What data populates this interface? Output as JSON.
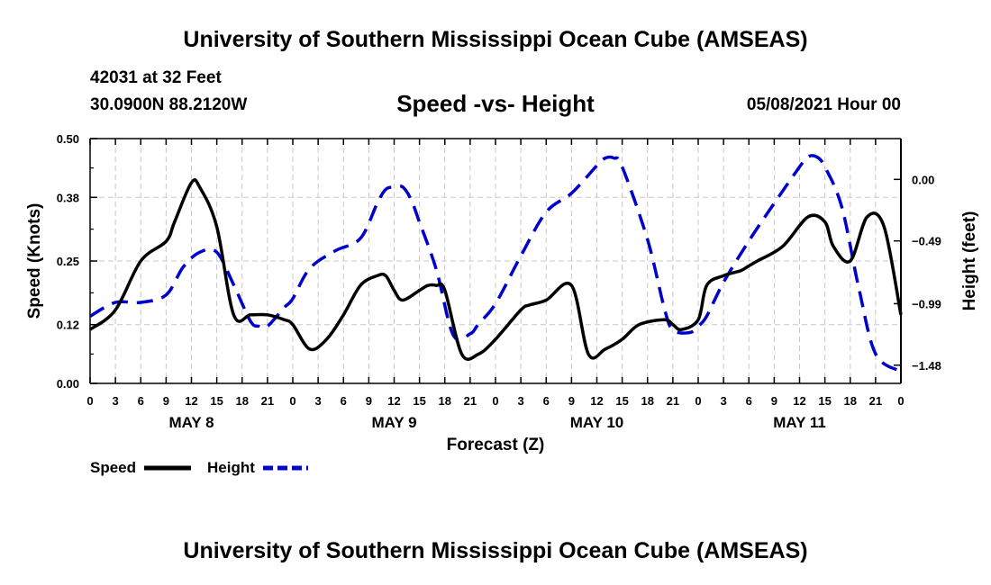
{
  "header": {
    "title": "University of Southern Mississippi Ocean Cube (AMSEAS)",
    "station": "42031 at 32 Feet",
    "coordinates": "30.0900N  88.2120W",
    "date": "05/08/2021 Hour 00"
  },
  "footer": {
    "title": "University of Southern Mississippi Ocean Cube (AMSEAS)"
  },
  "chart_data": {
    "type": "line",
    "title": "Speed -vs- Height",
    "xlabel": "Forecast (Z)",
    "ylabel": "Speed (Knots)",
    "y2label": "Height (feet)",
    "xlim": [
      0,
      96
    ],
    "ylim": [
      0,
      0.5
    ],
    "y2lim": [
      -1.625,
      0.325
    ],
    "grid": true,
    "x_ticks": [
      0,
      3,
      6,
      9,
      12,
      15,
      18,
      21,
      24,
      27,
      30,
      33,
      36,
      39,
      42,
      45,
      48,
      51,
      54,
      57,
      60,
      63,
      66,
      69,
      72,
      75,
      78,
      81,
      84,
      87,
      90,
      93,
      96
    ],
    "x_tick_labels": [
      "0",
      "3",
      "6",
      "9",
      "12",
      "15",
      "18",
      "21",
      "0",
      "3",
      "6",
      "9",
      "12",
      "15",
      "18",
      "21",
      "0",
      "3",
      "6",
      "9",
      "12",
      "15",
      "18",
      "21",
      "0",
      "3",
      "6",
      "9",
      "12",
      "15",
      "18",
      "21",
      "0"
    ],
    "y_ticks": [
      0.0,
      0.12,
      0.25,
      0.38,
      0.5
    ],
    "y_tick_labels": [
      "0.00",
      "0.12",
      "0.25",
      "0.38",
      "0.50"
    ],
    "y2_ticks": [
      0.0,
      -0.49,
      -0.99,
      -1.48
    ],
    "y2_tick_labels": [
      "0.00",
      "−0.49",
      "−0.99",
      "−1.48"
    ],
    "day_labels": [
      {
        "label": "MAY 8",
        "x": 12
      },
      {
        "label": "MAY 9",
        "x": 36
      },
      {
        "label": "MAY 10",
        "x": 60
      },
      {
        "label": "MAY 11",
        "x": 84
      }
    ],
    "series": [
      {
        "name": "Speed",
        "axis": "left",
        "color": "#000000",
        "dash": "solid",
        "x": [
          0,
          3,
          6,
          9,
          10,
          12,
          13,
          15,
          17,
          19,
          21,
          23,
          24,
          26,
          28,
          30,
          32,
          34,
          35,
          36,
          37,
          39,
          40,
          41,
          42,
          44,
          46,
          48,
          51,
          52,
          54,
          57,
          59,
          61,
          63,
          65,
          68,
          69,
          70,
          72,
          73,
          75,
          77,
          78,
          79,
          82,
          85,
          87,
          88,
          90,
          92,
          94,
          96
        ],
        "y": [
          0.11,
          0.15,
          0.25,
          0.29,
          0.33,
          0.41,
          0.4,
          0.32,
          0.14,
          0.14,
          0.14,
          0.13,
          0.12,
          0.07,
          0.09,
          0.14,
          0.2,
          0.22,
          0.22,
          0.19,
          0.17,
          0.19,
          0.2,
          0.2,
          0.19,
          0.06,
          0.06,
          0.09,
          0.15,
          0.16,
          0.17,
          0.2,
          0.06,
          0.07,
          0.09,
          0.12,
          0.13,
          0.12,
          0.11,
          0.13,
          0.2,
          0.22,
          0.23,
          0.24,
          0.25,
          0.28,
          0.34,
          0.33,
          0.28,
          0.25,
          0.34,
          0.32,
          0.14
        ]
      },
      {
        "name": "Height",
        "axis": "right",
        "color": "#0000cc",
        "dash": "dashed",
        "x": [
          0,
          3,
          6,
          9,
          11,
          13,
          15,
          17,
          19,
          20,
          21,
          23,
          24,
          26,
          29,
          32,
          34,
          35,
          36,
          37,
          38,
          39,
          41,
          43,
          45,
          46,
          48,
          51,
          54,
          57,
          60,
          61,
          62,
          63,
          66,
          68,
          69,
          71,
          72,
          73,
          75,
          78,
          81,
          84,
          85,
          86,
          87,
          89,
          91,
          93,
          96
        ],
        "y": [
          -1.09,
          -0.98,
          -0.98,
          -0.92,
          -0.7,
          -0.58,
          -0.58,
          -0.84,
          -1.13,
          -1.17,
          -1.17,
          -1.02,
          -0.95,
          -0.71,
          -0.57,
          -0.47,
          -0.19,
          -0.08,
          -0.06,
          -0.06,
          -0.16,
          -0.34,
          -0.72,
          -1.24,
          -1.23,
          -1.15,
          -0.99,
          -0.61,
          -0.26,
          -0.11,
          0.11,
          0.17,
          0.17,
          0.1,
          -0.48,
          -1.03,
          -1.2,
          -1.22,
          -1.17,
          -1.09,
          -0.82,
          -0.49,
          -0.19,
          0.1,
          0.18,
          0.18,
          0.1,
          -0.22,
          -0.86,
          -1.39,
          -1.53
        ]
      }
    ],
    "legend": [
      {
        "label": "Speed",
        "color": "#000000",
        "dash": "solid"
      },
      {
        "label": "Height",
        "color": "#0000cc",
        "dash": "dashed"
      }
    ]
  }
}
